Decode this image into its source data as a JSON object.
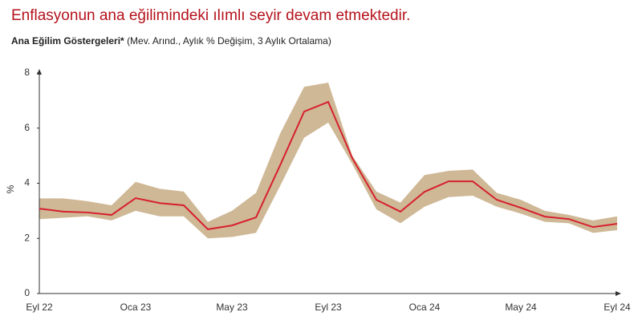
{
  "chart_data": {
    "type": "line",
    "title": "Enflasyonun ana eğilimindeki ılımlı seyir devam etmektedir.",
    "subtitle_bold": "Ana Eğilim Göstergeleri*",
    "subtitle": "(Mev. Arınd., Aylık % Değişim, 3 Aylık Ortalama)",
    "y_label": "%",
    "categories": [
      "Eyl 22",
      null,
      null,
      null,
      "Oca 23",
      null,
      null,
      null,
      "May 23",
      null,
      null,
      null,
      "Eyl 23",
      null,
      null,
      null,
      "Oca 24",
      null,
      null,
      null,
      "May 24",
      null,
      null,
      null,
      "Eyl 24"
    ],
    "series": [
      {
        "color": "#d6202e",
        "values": [
          3.08,
          2.97,
          2.94,
          2.85,
          3.46,
          3.28,
          3.2,
          2.33,
          2.47,
          2.76,
          4.65,
          6.6,
          6.95,
          4.91,
          3.4,
          2.97,
          3.69,
          4.07,
          4.07,
          3.4,
          3.11,
          2.79,
          2.7,
          2.41,
          2.53
        ]
      }
    ],
    "band": {
      "color": "#cfb896",
      "upper": [
        3.45,
        3.45,
        3.35,
        3.2,
        4.05,
        3.8,
        3.7,
        2.6,
        3.0,
        3.65,
        5.8,
        7.5,
        7.65,
        5.0,
        3.7,
        3.3,
        4.3,
        4.45,
        4.5,
        3.65,
        3.4,
        3.0,
        2.85,
        2.65,
        2.8
      ],
      "lower": [
        2.7,
        2.75,
        2.8,
        2.65,
        3.0,
        2.8,
        2.8,
        2.0,
        2.05,
        2.2,
        3.9,
        5.65,
        6.2,
        4.7,
        3.05,
        2.55,
        3.15,
        3.5,
        3.55,
        3.15,
        2.9,
        2.6,
        2.55,
        2.2,
        2.3
      ]
    },
    "ylim": [
      0,
      8
    ],
    "yticks": [
      0,
      2,
      4,
      6,
      8
    ],
    "grid": false
  }
}
